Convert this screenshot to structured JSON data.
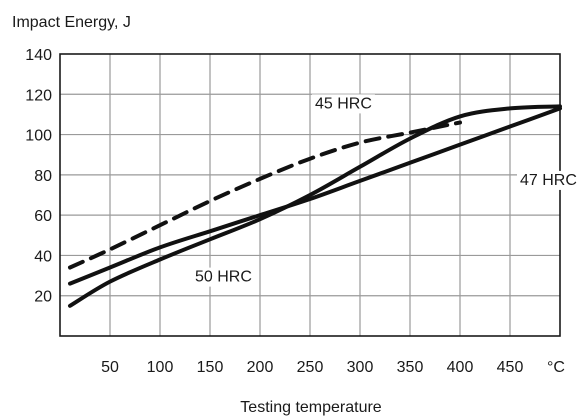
{
  "chart_data": {
    "type": "line",
    "ylabel": "Impact Energy,  J",
    "xlabel": "Testing temperature",
    "x_unit": "°C",
    "xlim": [
      0,
      500
    ],
    "ylim": [
      0,
      140
    ],
    "x_ticks": [
      50,
      100,
      150,
      200,
      250,
      300,
      350,
      400,
      450
    ],
    "y_ticks": [
      20,
      40,
      60,
      80,
      100,
      120,
      140
    ],
    "grid": true,
    "legend": "none",
    "series": [
      {
        "name": "45 HRC",
        "style": "dashed",
        "label_at": [
          255,
          113
        ],
        "x": [
          10,
          50,
          100,
          150,
          200,
          250,
          300,
          350,
          400
        ],
        "values": [
          34,
          43,
          55,
          67,
          78,
          88,
          96,
          101,
          106
        ]
      },
      {
        "name": "47 HRC",
        "style": "solid",
        "label_at": [
          460,
          75
        ],
        "x": [
          10,
          50,
          100,
          150,
          200,
          250,
          300,
          350,
          400,
          450,
          500
        ],
        "values": [
          26,
          34,
          44,
          52,
          60,
          68,
          77,
          86,
          95,
          104,
          113
        ]
      },
      {
        "name": "50 HRC",
        "style": "solid",
        "label_at": [
          135,
          27
        ],
        "x": [
          10,
          50,
          100,
          150,
          200,
          250,
          300,
          350,
          400,
          450,
          500
        ],
        "values": [
          15,
          27,
          38,
          48,
          58,
          70,
          84,
          98,
          109,
          113,
          114
        ]
      }
    ]
  }
}
